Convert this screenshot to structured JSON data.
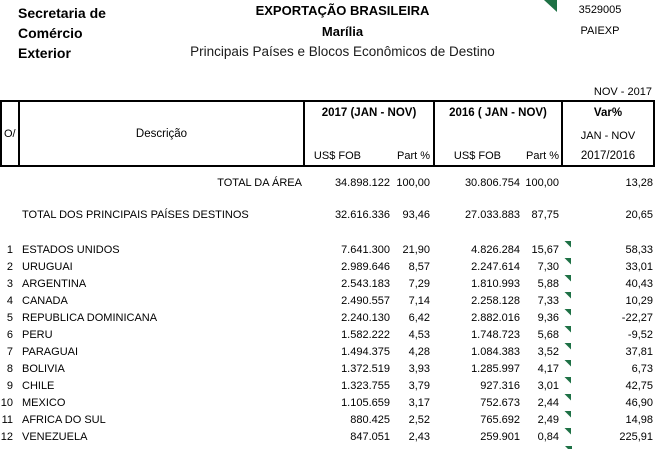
{
  "header": {
    "org_line1": "Secretaria de",
    "org_line2": "Comércio",
    "org_line3": "Exterior",
    "title": "EXPORTAÇÃO BRASILEIRA",
    "city": "Marília",
    "subtitle": "Principais Países e Blocos Econômicos de Destino",
    "code": "3529005",
    "report_code": "PAIEXP",
    "period": "NOV - 2017"
  },
  "table": {
    "columns": {
      "ord": "O/",
      "description": "Descrição",
      "group_2017": "2017 (JAN - NOV)",
      "group_2016": "2016 ( JAN - NOV)",
      "usd_label": "US$ FOB",
      "part_label": "Part %",
      "var_label": "Var%",
      "var_sub1": "JAN - NOV",
      "var_sub2": "2017/2016"
    },
    "totals": [
      {
        "label": "TOTAL DA ÁREA",
        "usd_2017": "34.898.122",
        "part_2017": "100,00",
        "usd_2016": "30.806.754",
        "part_2016": "100,00",
        "var": "13,28",
        "flag": false
      },
      {
        "label": "TOTAL DOS PRINCIPAIS PAÍSES DESTINOS",
        "usd_2017": "32.616.336",
        "part_2017": "93,46",
        "usd_2016": "27.033.883",
        "part_2016": "87,75",
        "var": "20,65",
        "flag": false
      }
    ],
    "rows": [
      {
        "rank": "1",
        "country": "ESTADOS UNIDOS",
        "usd_2017": "7.641.300",
        "part_2017": "21,90",
        "usd_2016": "4.826.284",
        "part_2016": "15,67",
        "var": "58,33",
        "flag": true
      },
      {
        "rank": "2",
        "country": "URUGUAI",
        "usd_2017": "2.989.646",
        "part_2017": "8,57",
        "usd_2016": "2.247.614",
        "part_2016": "7,30",
        "var": "33,01",
        "flag": true
      },
      {
        "rank": "3",
        "country": "ARGENTINA",
        "usd_2017": "2.543.183",
        "part_2017": "7,29",
        "usd_2016": "1.810.993",
        "part_2016": "5,88",
        "var": "40,43",
        "flag": true
      },
      {
        "rank": "4",
        "country": "CANADA",
        "usd_2017": "2.490.557",
        "part_2017": "7,14",
        "usd_2016": "2.258.128",
        "part_2016": "7,33",
        "var": "10,29",
        "flag": true
      },
      {
        "rank": "5",
        "country": "REPUBLICA DOMINICANA",
        "usd_2017": "2.240.130",
        "part_2017": "6,42",
        "usd_2016": "2.882.016",
        "part_2016": "9,36",
        "var": "-22,27",
        "flag": true
      },
      {
        "rank": "6",
        "country": "PERU",
        "usd_2017": "1.582.222",
        "part_2017": "4,53",
        "usd_2016": "1.748.723",
        "part_2016": "5,68",
        "var": "-9,52",
        "flag": true
      },
      {
        "rank": "7",
        "country": "PARAGUAI",
        "usd_2017": "1.494.375",
        "part_2017": "4,28",
        "usd_2016": "1.084.383",
        "part_2016": "3,52",
        "var": "37,81",
        "flag": true
      },
      {
        "rank": "8",
        "country": "BOLIVIA",
        "usd_2017": "1.372.519",
        "part_2017": "3,93",
        "usd_2016": "1.285.997",
        "part_2016": "4,17",
        "var": "6,73",
        "flag": true
      },
      {
        "rank": "9",
        "country": "CHILE",
        "usd_2017": "1.323.755",
        "part_2017": "3,79",
        "usd_2016": "927.316",
        "part_2016": "3,01",
        "var": "42,75",
        "flag": true
      },
      {
        "rank": "10",
        "country": "MEXICO",
        "usd_2017": "1.105.659",
        "part_2017": "3,17",
        "usd_2016": "752.673",
        "part_2016": "2,44",
        "var": "46,90",
        "flag": true
      },
      {
        "rank": "11",
        "country": "AFRICA DO SUL",
        "usd_2017": "880.425",
        "part_2017": "2,52",
        "usd_2016": "765.692",
        "part_2016": "2,49",
        "var": "14,98",
        "flag": true
      },
      {
        "rank": "12",
        "country": "VENEZUELA",
        "usd_2017": "847.051",
        "part_2017": "2,43",
        "usd_2016": "259.901",
        "part_2016": "0,84",
        "var": "225,91",
        "flag": true
      }
    ]
  },
  "colors": {
    "flag_green": "#1e7145",
    "border": "#000000",
    "background": "#ffffff"
  }
}
